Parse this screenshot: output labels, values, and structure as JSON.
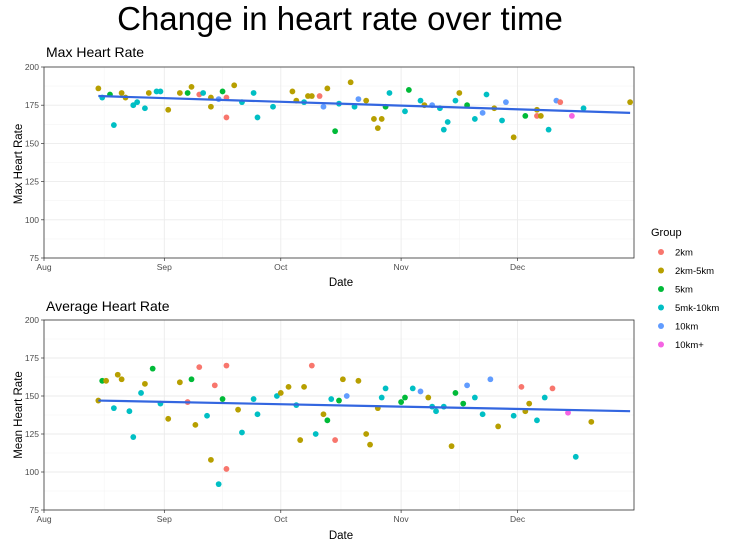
{
  "title": "Change in heart rate over time",
  "colors": {
    "2km": "#f8766d",
    "2km-5km": "#b79f00",
    "5km": "#00ba38",
    "5mk-10km": "#00bfc4",
    "10km": "#619cff",
    "10km+": "#f564e3"
  },
  "legend": {
    "title": "Group",
    "items": [
      {
        "label": "2km",
        "color": "#f8766d"
      },
      {
        "label": "2km-5km",
        "color": "#b79f00"
      },
      {
        "label": "5km",
        "color": "#00ba38"
      },
      {
        "label": "5mk-10km",
        "color": "#00bfc4"
      },
      {
        "label": "10km",
        "color": "#619cff"
      },
      {
        "label": "10km+",
        "color": "#f564e3"
      }
    ]
  },
  "chart_data": [
    {
      "type": "scatter",
      "title": "Max Heart Rate",
      "xlabel": "Date",
      "ylabel": "Max Heart Rate",
      "ylim": [
        75,
        200
      ],
      "xlim": [
        "2023-08-01",
        "2023-12-31"
      ],
      "yticks": [
        75,
        100,
        125,
        150,
        175,
        200
      ],
      "xticks": [
        {
          "label": "Aug",
          "date": "2023-08-01"
        },
        {
          "label": "Sep",
          "date": "2023-09-01"
        },
        {
          "label": "Oct",
          "date": "2023-10-01"
        },
        {
          "label": "Nov",
          "date": "2023-11-01"
        },
        {
          "label": "Dec",
          "date": "2023-12-01"
        }
      ],
      "grid": true,
      "trend": {
        "start": {
          "date": "2023-08-15",
          "y": 181
        },
        "end": {
          "date": "2023-12-30",
          "y": 170
        }
      },
      "points": [
        {
          "date": "2023-08-15",
          "y": 186,
          "group": "2km-5km"
        },
        {
          "date": "2023-08-16",
          "y": 180,
          "group": "5mk-10km"
        },
        {
          "date": "2023-08-18",
          "y": 182,
          "group": "5km"
        },
        {
          "date": "2023-08-19",
          "y": 162,
          "group": "5mk-10km"
        },
        {
          "date": "2023-08-21",
          "y": 183,
          "group": "2km-5km"
        },
        {
          "date": "2023-08-22",
          "y": 180,
          "group": "2km-5km"
        },
        {
          "date": "2023-08-24",
          "y": 175,
          "group": "5mk-10km"
        },
        {
          "date": "2023-08-25",
          "y": 177,
          "group": "5mk-10km"
        },
        {
          "date": "2023-08-27",
          "y": 173,
          "group": "5mk-10km"
        },
        {
          "date": "2023-08-28",
          "y": 183,
          "group": "2km-5km"
        },
        {
          "date": "2023-08-30",
          "y": 184,
          "group": "5mk-10km"
        },
        {
          "date": "2023-08-31",
          "y": 184,
          "group": "5mk-10km"
        },
        {
          "date": "2023-09-02",
          "y": 172,
          "group": "2km-5km"
        },
        {
          "date": "2023-09-05",
          "y": 183,
          "group": "2km-5km"
        },
        {
          "date": "2023-09-07",
          "y": 183,
          "group": "5km"
        },
        {
          "date": "2023-09-08",
          "y": 187,
          "group": "2km-5km"
        },
        {
          "date": "2023-09-10",
          "y": 182,
          "group": "2km"
        },
        {
          "date": "2023-09-11",
          "y": 183,
          "group": "5mk-10km"
        },
        {
          "date": "2023-09-13",
          "y": 174,
          "group": "2km-5km"
        },
        {
          "date": "2023-09-13",
          "y": 180,
          "group": "2km-5km"
        },
        {
          "date": "2023-09-15",
          "y": 179,
          "group": "10km"
        },
        {
          "date": "2023-09-16",
          "y": 184,
          "group": "5km"
        },
        {
          "date": "2023-09-17",
          "y": 167,
          "group": "2km"
        },
        {
          "date": "2023-09-17",
          "y": 180,
          "group": "2km"
        },
        {
          "date": "2023-09-19",
          "y": 188,
          "group": "2km-5km"
        },
        {
          "date": "2023-09-21",
          "y": 177,
          "group": "5mk-10km"
        },
        {
          "date": "2023-09-24",
          "y": 183,
          "group": "5mk-10km"
        },
        {
          "date": "2023-09-25",
          "y": 167,
          "group": "5mk-10km"
        },
        {
          "date": "2023-09-29",
          "y": 174,
          "group": "5mk-10km"
        },
        {
          "date": "2023-10-04",
          "y": 184,
          "group": "2km-5km"
        },
        {
          "date": "2023-10-05",
          "y": 178,
          "group": "2km-5km"
        },
        {
          "date": "2023-10-07",
          "y": 177,
          "group": "5mk-10km"
        },
        {
          "date": "2023-10-08",
          "y": 181,
          "group": "2km-5km"
        },
        {
          "date": "2023-10-09",
          "y": 181,
          "group": "2km-5km"
        },
        {
          "date": "2023-10-11",
          "y": 181,
          "group": "2km"
        },
        {
          "date": "2023-10-12",
          "y": 174,
          "group": "10km"
        },
        {
          "date": "2023-10-13",
          "y": 186,
          "group": "2km-5km"
        },
        {
          "date": "2023-10-15",
          "y": 158,
          "group": "5km"
        },
        {
          "date": "2023-10-16",
          "y": 176,
          "group": "5mk-10km"
        },
        {
          "date": "2023-10-19",
          "y": 190,
          "group": "2km-5km"
        },
        {
          "date": "2023-10-20",
          "y": 174,
          "group": "5mk-10km"
        },
        {
          "date": "2023-10-21",
          "y": 179,
          "group": "10km"
        },
        {
          "date": "2023-10-23",
          "y": 178,
          "group": "2km-5km"
        },
        {
          "date": "2023-10-25",
          "y": 166,
          "group": "2km-5km"
        },
        {
          "date": "2023-10-26",
          "y": 160,
          "group": "2km-5km"
        },
        {
          "date": "2023-10-27",
          "y": 166,
          "group": "2km-5km"
        },
        {
          "date": "2023-10-28",
          "y": 174,
          "group": "5km"
        },
        {
          "date": "2023-10-29",
          "y": 183,
          "group": "5mk-10km"
        },
        {
          "date": "2023-11-02",
          "y": 171,
          "group": "5mk-10km"
        },
        {
          "date": "2023-11-03",
          "y": 185,
          "group": "5km"
        },
        {
          "date": "2023-11-06",
          "y": 178,
          "group": "5mk-10km"
        },
        {
          "date": "2023-11-07",
          "y": 175,
          "group": "2km-5km"
        },
        {
          "date": "2023-11-09",
          "y": 175,
          "group": "10km"
        },
        {
          "date": "2023-11-11",
          "y": 173,
          "group": "5mk-10km"
        },
        {
          "date": "2023-11-12",
          "y": 159,
          "group": "5mk-10km"
        },
        {
          "date": "2023-11-13",
          "y": 164,
          "group": "5mk-10km"
        },
        {
          "date": "2023-11-15",
          "y": 178,
          "group": "5mk-10km"
        },
        {
          "date": "2023-11-16",
          "y": 183,
          "group": "2km-5km"
        },
        {
          "date": "2023-11-18",
          "y": 175,
          "group": "5km"
        },
        {
          "date": "2023-11-20",
          "y": 166,
          "group": "5mk-10km"
        },
        {
          "date": "2023-11-22",
          "y": 170,
          "group": "10km"
        },
        {
          "date": "2023-11-23",
          "y": 182,
          "group": "5mk-10km"
        },
        {
          "date": "2023-11-25",
          "y": 173,
          "group": "2km-5km"
        },
        {
          "date": "2023-11-27",
          "y": 165,
          "group": "5mk-10km"
        },
        {
          "date": "2023-11-28",
          "y": 177,
          "group": "10km"
        },
        {
          "date": "2023-11-30",
          "y": 154,
          "group": "2km-5km"
        },
        {
          "date": "2023-12-03",
          "y": 168,
          "group": "5km"
        },
        {
          "date": "2023-12-06",
          "y": 168,
          "group": "2km"
        },
        {
          "date": "2023-12-06",
          "y": 172,
          "group": "2km-5km"
        },
        {
          "date": "2023-12-07",
          "y": 168,
          "group": "2km-5km"
        },
        {
          "date": "2023-12-09",
          "y": 159,
          "group": "5mk-10km"
        },
        {
          "date": "2023-12-11",
          "y": 178,
          "group": "10km"
        },
        {
          "date": "2023-12-12",
          "y": 177,
          "group": "2km"
        },
        {
          "date": "2023-12-15",
          "y": 168,
          "group": "10km+"
        },
        {
          "date": "2023-12-18",
          "y": 173,
          "group": "5mk-10km"
        },
        {
          "date": "2023-12-30",
          "y": 177,
          "group": "2km-5km"
        }
      ]
    },
    {
      "type": "scatter",
      "title": "Average Heart Rate",
      "xlabel": "Date",
      "ylabel": "Mean Heart Rate",
      "ylim": [
        75,
        200
      ],
      "xlim": [
        "2023-08-01",
        "2023-12-31"
      ],
      "yticks": [
        75,
        100,
        125,
        150,
        175,
        200
      ],
      "xticks": [
        {
          "label": "Aug",
          "date": "2023-08-01"
        },
        {
          "label": "Sep",
          "date": "2023-09-01"
        },
        {
          "label": "Oct",
          "date": "2023-10-01"
        },
        {
          "label": "Nov",
          "date": "2023-11-01"
        },
        {
          "label": "Dec",
          "date": "2023-12-01"
        }
      ],
      "grid": true,
      "trend": {
        "start": {
          "date": "2023-08-15",
          "y": 147
        },
        "end": {
          "date": "2023-12-30",
          "y": 140
        }
      },
      "points": [
        {
          "date": "2023-08-15",
          "y": 147,
          "group": "2km-5km"
        },
        {
          "date": "2023-08-16",
          "y": 160,
          "group": "5km"
        },
        {
          "date": "2023-08-17",
          "y": 160,
          "group": "2km-5km"
        },
        {
          "date": "2023-08-19",
          "y": 142,
          "group": "5mk-10km"
        },
        {
          "date": "2023-08-20",
          "y": 164,
          "group": "2km-5km"
        },
        {
          "date": "2023-08-21",
          "y": 161,
          "group": "2km-5km"
        },
        {
          "date": "2023-08-23",
          "y": 140,
          "group": "5mk-10km"
        },
        {
          "date": "2023-08-24",
          "y": 123,
          "group": "5mk-10km"
        },
        {
          "date": "2023-08-26",
          "y": 152,
          "group": "5mk-10km"
        },
        {
          "date": "2023-08-27",
          "y": 158,
          "group": "2km-5km"
        },
        {
          "date": "2023-08-29",
          "y": 168,
          "group": "5km"
        },
        {
          "date": "2023-08-31",
          "y": 145,
          "group": "5mk-10km"
        },
        {
          "date": "2023-09-02",
          "y": 135,
          "group": "2km-5km"
        },
        {
          "date": "2023-09-05",
          "y": 159,
          "group": "2km-5km"
        },
        {
          "date": "2023-09-07",
          "y": 146,
          "group": "2km"
        },
        {
          "date": "2023-09-08",
          "y": 161,
          "group": "5km"
        },
        {
          "date": "2023-09-09",
          "y": 131,
          "group": "2km-5km"
        },
        {
          "date": "2023-09-10",
          "y": 169,
          "group": "2km"
        },
        {
          "date": "2023-09-12",
          "y": 137,
          "group": "5mk-10km"
        },
        {
          "date": "2023-09-13",
          "y": 108,
          "group": "2km-5km"
        },
        {
          "date": "2023-09-14",
          "y": 157,
          "group": "2km"
        },
        {
          "date": "2023-09-15",
          "y": 92,
          "group": "5mk-10km"
        },
        {
          "date": "2023-09-16",
          "y": 148,
          "group": "5km"
        },
        {
          "date": "2023-09-17",
          "y": 102,
          "group": "2km"
        },
        {
          "date": "2023-09-17",
          "y": 170,
          "group": "2km"
        },
        {
          "date": "2023-09-20",
          "y": 141,
          "group": "2km-5km"
        },
        {
          "date": "2023-09-21",
          "y": 126,
          "group": "5mk-10km"
        },
        {
          "date": "2023-09-24",
          "y": 148,
          "group": "5mk-10km"
        },
        {
          "date": "2023-09-25",
          "y": 138,
          "group": "5mk-10km"
        },
        {
          "date": "2023-09-30",
          "y": 150,
          "group": "5mk-10km"
        },
        {
          "date": "2023-10-01",
          "y": 152,
          "group": "2km-5km"
        },
        {
          "date": "2023-10-03",
          "y": 156,
          "group": "2km-5km"
        },
        {
          "date": "2023-10-05",
          "y": 144,
          "group": "5mk-10km"
        },
        {
          "date": "2023-10-06",
          "y": 121,
          "group": "2km-5km"
        },
        {
          "date": "2023-10-07",
          "y": 156,
          "group": "2km-5km"
        },
        {
          "date": "2023-10-09",
          "y": 170,
          "group": "2km"
        },
        {
          "date": "2023-10-10",
          "y": 125,
          "group": "5mk-10km"
        },
        {
          "date": "2023-10-12",
          "y": 138,
          "group": "2km-5km"
        },
        {
          "date": "2023-10-13",
          "y": 134,
          "group": "5km"
        },
        {
          "date": "2023-10-14",
          "y": 148,
          "group": "5mk-10km"
        },
        {
          "date": "2023-10-15",
          "y": 121,
          "group": "2km"
        },
        {
          "date": "2023-10-16",
          "y": 147,
          "group": "5km"
        },
        {
          "date": "2023-10-17",
          "y": 161,
          "group": "2km-5km"
        },
        {
          "date": "2023-10-18",
          "y": 150,
          "group": "10km"
        },
        {
          "date": "2023-10-21",
          "y": 160,
          "group": "2km-5km"
        },
        {
          "date": "2023-10-23",
          "y": 125,
          "group": "2km-5km"
        },
        {
          "date": "2023-10-24",
          "y": 118,
          "group": "2km-5km"
        },
        {
          "date": "2023-10-26",
          "y": 142,
          "group": "2km-5km"
        },
        {
          "date": "2023-10-27",
          "y": 149,
          "group": "5mk-10km"
        },
        {
          "date": "2023-10-28",
          "y": 155,
          "group": "5mk-10km"
        },
        {
          "date": "2023-11-01",
          "y": 146,
          "group": "5km"
        },
        {
          "date": "2023-11-02",
          "y": 149,
          "group": "5km"
        },
        {
          "date": "2023-11-04",
          "y": 155,
          "group": "5mk-10km"
        },
        {
          "date": "2023-11-06",
          "y": 153,
          "group": "10km"
        },
        {
          "date": "2023-11-08",
          "y": 149,
          "group": "2km-5km"
        },
        {
          "date": "2023-11-09",
          "y": 143,
          "group": "5mk-10km"
        },
        {
          "date": "2023-11-10",
          "y": 140,
          "group": "5mk-10km"
        },
        {
          "date": "2023-11-12",
          "y": 143,
          "group": "5mk-10km"
        },
        {
          "date": "2023-11-14",
          "y": 117,
          "group": "2km-5km"
        },
        {
          "date": "2023-11-15",
          "y": 152,
          "group": "5km"
        },
        {
          "date": "2023-11-17",
          "y": 145,
          "group": "5km"
        },
        {
          "date": "2023-11-18",
          "y": 157,
          "group": "10km"
        },
        {
          "date": "2023-11-20",
          "y": 149,
          "group": "5mk-10km"
        },
        {
          "date": "2023-11-22",
          "y": 138,
          "group": "5mk-10km"
        },
        {
          "date": "2023-11-24",
          "y": 161,
          "group": "10km"
        },
        {
          "date": "2023-11-26",
          "y": 130,
          "group": "2km-5km"
        },
        {
          "date": "2023-11-30",
          "y": 137,
          "group": "5mk-10km"
        },
        {
          "date": "2023-12-02",
          "y": 156,
          "group": "2km"
        },
        {
          "date": "2023-12-03",
          "y": 140,
          "group": "2km-5km"
        },
        {
          "date": "2023-12-04",
          "y": 145,
          "group": "2km-5km"
        },
        {
          "date": "2023-12-06",
          "y": 134,
          "group": "5mk-10km"
        },
        {
          "date": "2023-12-08",
          "y": 149,
          "group": "5mk-10km"
        },
        {
          "date": "2023-12-10",
          "y": 155,
          "group": "2km"
        },
        {
          "date": "2023-12-14",
          "y": 139,
          "group": "10km+"
        },
        {
          "date": "2023-12-16",
          "y": 110,
          "group": "5mk-10km"
        },
        {
          "date": "2023-12-20",
          "y": 133,
          "group": "2km-5km"
        }
      ]
    }
  ]
}
